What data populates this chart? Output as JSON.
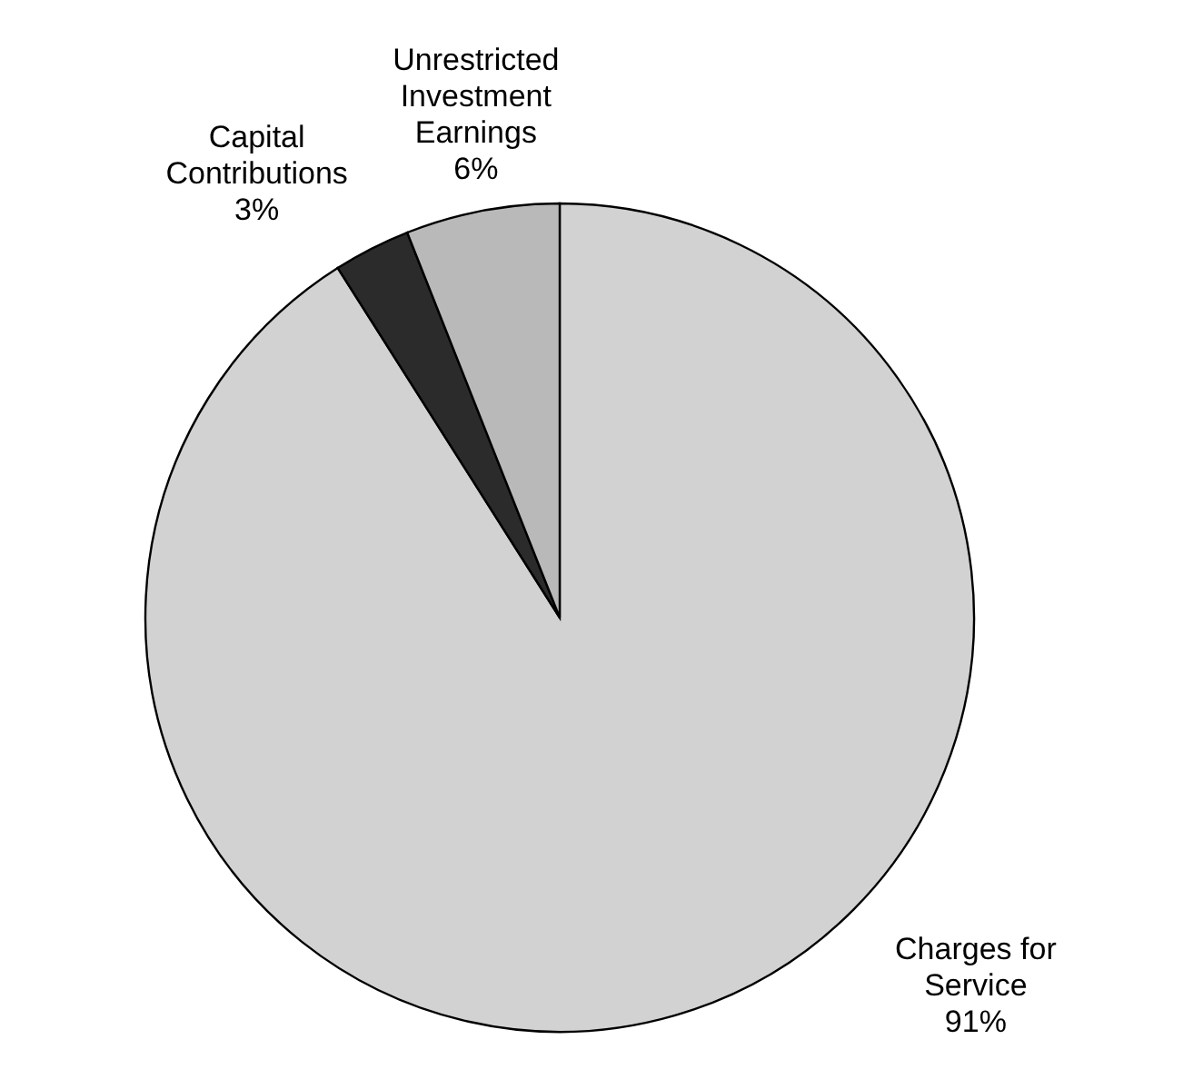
{
  "chart_data": {
    "type": "pie",
    "categories": [
      "Charges for Service",
      "Capital Contributions",
      "Unrestricted Investment Earnings"
    ],
    "values": [
      91,
      3,
      6
    ],
    "colors": [
      "#d2d2d2",
      "#2b2b2b",
      "#b9b9b9"
    ],
    "value_labels": [
      "91%",
      "3%",
      "6%"
    ]
  }
}
